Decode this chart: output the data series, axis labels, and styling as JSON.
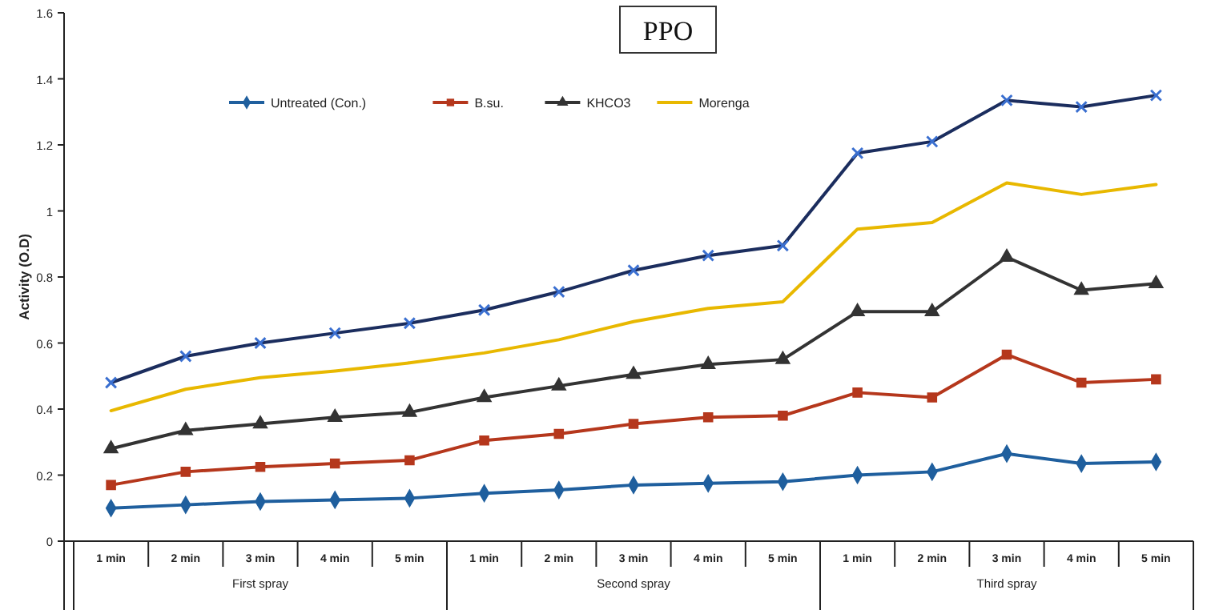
{
  "chart_data": {
    "type": "line",
    "title": "PPO",
    "ylabel": "Activity (O.D)",
    "categories": [
      "1 min",
      "2 min",
      "3 min",
      "4 min",
      "5 min",
      "1 min",
      "2 min",
      "3 min",
      "4 min",
      "5 min",
      "1 min",
      "2 min",
      "3 min",
      "4 min",
      "5 min"
    ],
    "annotations": [
      "First spray",
      "Second spray",
      "Third spray"
    ],
    "ylim": [
      0,
      1.6
    ],
    "yticks": [
      0,
      0.2,
      0.4,
      0.6,
      0.8,
      1,
      1.2,
      1.4,
      1.6
    ],
    "grid": false,
    "legend": "top",
    "line_style": "solid",
    "series": [
      {
        "name": "Untreated (Con.)",
        "color": "#1f5f9e",
        "marker": "diamond",
        "values": [
          0.1,
          0.11,
          0.12,
          0.125,
          0.13,
          0.145,
          0.155,
          0.17,
          0.175,
          0.18,
          0.2,
          0.21,
          0.265,
          0.235,
          0.24
        ]
      },
      {
        "name": "B.su.",
        "color": "#b5371c",
        "marker": "square",
        "values": [
          0.17,
          0.21,
          0.225,
          0.235,
          0.245,
          0.305,
          0.325,
          0.355,
          0.375,
          0.38,
          0.45,
          0.435,
          0.565,
          0.48,
          0.49
        ]
      },
      {
        "name": "KHCO3",
        "color": "#333333",
        "marker": "triangle",
        "values": [
          0.28,
          0.335,
          0.355,
          0.375,
          0.39,
          0.435,
          0.47,
          0.505,
          0.535,
          0.55,
          0.695,
          0.695,
          0.86,
          0.76,
          0.78
        ]
      },
      {
        "name": "Morenga",
        "color": "#e8b800",
        "marker": "none",
        "values": [
          0.395,
          0.46,
          0.495,
          0.515,
          0.54,
          0.57,
          0.61,
          0.665,
          0.705,
          0.725,
          0.945,
          0.965,
          1.085,
          1.05,
          1.08
        ]
      },
      {
        "color": "#1b2d5e",
        "marker": "cross",
        "values": [
          0.48,
          0.56,
          0.6,
          0.63,
          0.66,
          0.7,
          0.755,
          0.82,
          0.865,
          0.895,
          1.175,
          1.21,
          1.335,
          1.315,
          1.35
        ]
      }
    ]
  }
}
